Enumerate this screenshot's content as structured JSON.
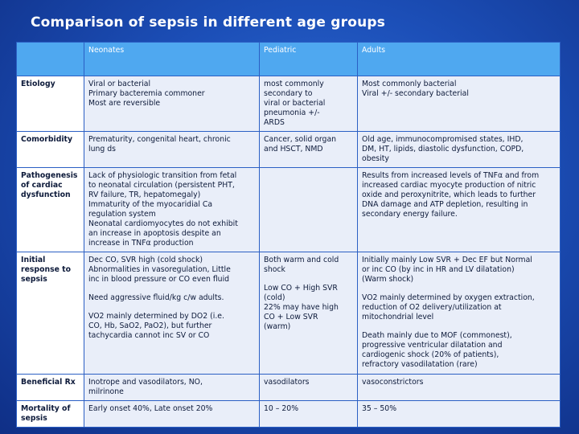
{
  "slide": {
    "title": "Comparison of sepsis in different age groups"
  },
  "table": {
    "headers": [
      "",
      "Neonates",
      "Pediatric",
      "Adults"
    ],
    "rows": [
      {
        "label": "Etiology",
        "neonates": [
          "Viral or bacterial",
          "Primary bacteremia commoner",
          "Most are reversible"
        ],
        "pediatric": [
          "most commonly",
          "secondary to",
          "viral or bacterial",
          "pneumonia +/-",
          "ARDS"
        ],
        "adults": [
          "Most commonly bacterial",
          "Viral +/- secondary bacterial"
        ]
      },
      {
        "label": "Comorbidity",
        "neonates": [
          "Prematurity, congenital heart, chronic",
          "lung ds"
        ],
        "pediatric": [
          "Cancer, solid organ",
          "and HSCT, NMD"
        ],
        "adults": [
          "Old age, immunocompromised states, IHD,",
          "DM, HT, lipids, diastolic dysfunction, COPD,",
          "obesity"
        ]
      },
      {
        "label": "Pathogenesis of cardiac dysfunction",
        "neonates": [
          "Lack of physiologic transition from fetal",
          "to neonatal circulation (persistent PHT,",
          "RV failure, TR, hepatomegaly)",
          "Immaturity of the myocaridial Ca",
          "regulation system",
          "Neonatal cardiomyocytes do not exhibit",
          "an increase in apoptosis despite an",
          "increase in TNFα production"
        ],
        "pediatric": [],
        "adults": [
          "Results from increased levels of TNFα and from",
          "increased cardiac myocyte production of nitric",
          "oxide and peroxynitrite, which leads to further",
          "DNA damage and ATP depletion, resulting in",
          "secondary energy failure."
        ]
      },
      {
        "label": "Initial response to sepsis",
        "neonates_blocks": [
          [
            "Dec CO, SVR high (cold shock)",
            "Abnormalities in vasoregulation, Little",
            "inc in blood pressure or CO even fluid"
          ],
          [
            "Need aggressive fluid/kg c/w adults."
          ],
          [
            "VO2 mainly determined by DO2 (i.e.",
            "CO, Hb, SaO2, PaO2), but further",
            "tachycardia cannot inc SV or CO"
          ]
        ],
        "pediatric_blocks": [
          [
            "Both warm and cold",
            "shock"
          ],
          [
            "Low CO + High SVR",
            "(cold)",
            "22% may have high",
            "CO + Low SVR",
            "(warm)"
          ]
        ],
        "adults_blocks": [
          [
            "Initially mainly Low SVR + Dec EF but Normal",
            "or inc CO (by inc in HR and LV dilatation)",
            "(Warm shock)"
          ],
          [
            "VO2 mainly determined by oxygen extraction,",
            "reduction of O2 delivery/utilization at",
            "mitochondrial level"
          ],
          [
            "Death mainly due to MOF (commonest),",
            "progressive ventricular dilatation and",
            "cardiogenic shock (20% of patients),",
            "refractory vasodilatation (rare)"
          ]
        ]
      },
      {
        "label": "Beneficial Rx",
        "neonates": [
          "Inotrope and vasodilators, NO,",
          "milrinone"
        ],
        "pediatric": [
          "vasodilators"
        ],
        "adults": [
          "vasoconstrictors"
        ]
      },
      {
        "label": "Mortality of sepsis",
        "neonates": [
          "Early onset 40%, Late onset 20%"
        ],
        "pediatric": [
          "10 – 20%"
        ],
        "adults": [
          "35 – 50%"
        ]
      }
    ]
  }
}
